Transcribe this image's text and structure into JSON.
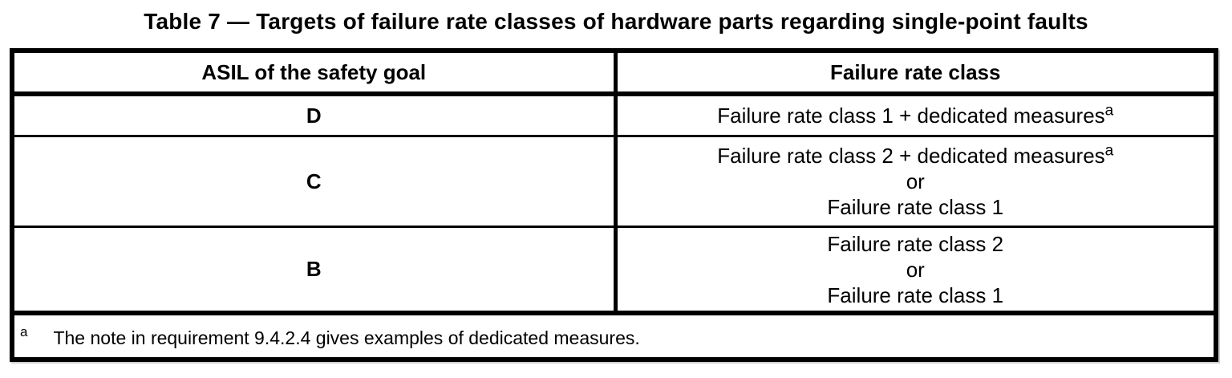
{
  "caption": "Table 7 — Targets of failure rate classes of hardware parts regarding single-point faults",
  "columns": [
    "ASIL of the safety goal",
    "Failure rate class"
  ],
  "rows": [
    {
      "asil": "D",
      "lines": [
        {
          "text": "Failure rate class 1 + dedicated measures",
          "sup": "a"
        }
      ]
    },
    {
      "asil": "C",
      "lines": [
        {
          "text": "Failure rate class 2 + dedicated measures",
          "sup": "a"
        },
        {
          "text": "or"
        },
        {
          "text": "Failure rate class 1"
        }
      ]
    },
    {
      "asil": "B",
      "lines": [
        {
          "text": "Failure rate class 2"
        },
        {
          "text": "or"
        },
        {
          "text": "Failure rate class 1"
        }
      ]
    }
  ],
  "footnote": {
    "marker": "a",
    "text": "The note in requirement 9.4.2.4 gives examples of dedicated measures."
  },
  "colors": {
    "text": "#000000",
    "border": "#000000",
    "background": "#ffffff"
  }
}
